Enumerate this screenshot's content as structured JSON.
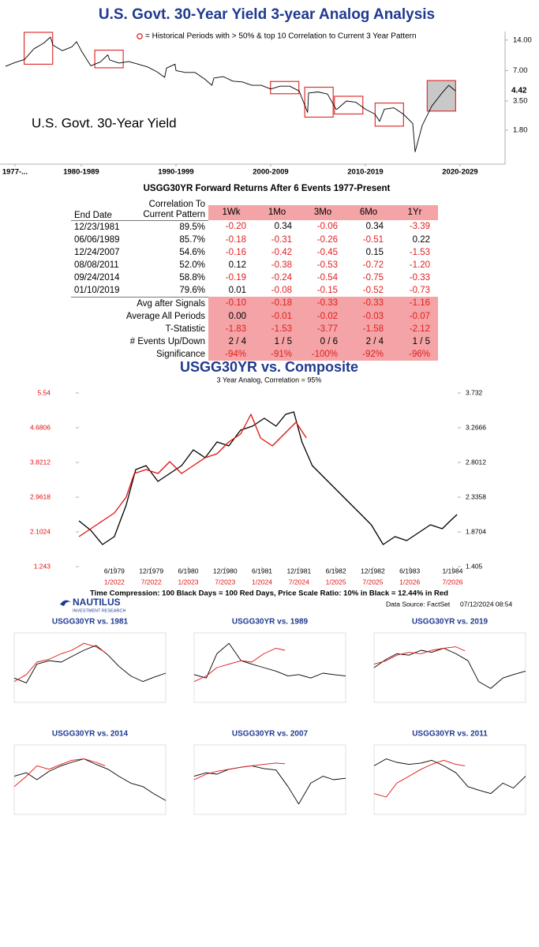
{
  "chart_data": [
    {
      "type": "line",
      "title": "U.S. Govt. 30-Year Yield 3-year Analog Analysis",
      "legend_text": "= Historical Periods with > 50% & top 10 Correlation to Current 3 Year Pattern",
      "annotation": "U.S. Govt. 30-Year Yield",
      "log_scale": true,
      "xlim": [
        1976.42,
        2029.75
      ],
      "xticks": [
        {
          "value": 1978,
          "label": "1977-..."
        },
        {
          "value": 1985,
          "label": "1980-1989"
        },
        {
          "value": 1995,
          "label": "1990-1999"
        },
        {
          "value": 2005,
          "label": "2000-2009"
        },
        {
          "value": 2015,
          "label": "2010-2019"
        },
        {
          "value": 2025,
          "label": "2020-2029"
        }
      ],
      "ylim": [
        1.05,
        17
      ],
      "yticks": [
        {
          "value": 1.8,
          "label": "1.80"
        },
        {
          "value": 3.5,
          "label": "3.50"
        },
        {
          "value": 7,
          "label": "7.00"
        },
        {
          "value": 14,
          "label": "14.00"
        }
      ],
      "x": [
        1977,
        1978,
        1979,
        1980,
        1981,
        1981.75,
        1982,
        1983,
        1984,
        1984.5,
        1985,
        1986,
        1987,
        1987.8,
        1988,
        1989,
        1990,
        1991,
        1992,
        1993,
        1993.8,
        1994,
        1994.9,
        1995,
        1996,
        1997,
        1998,
        1998.8,
        1999,
        2000,
        2001,
        2002,
        2003,
        2004,
        2005,
        2006,
        2007,
        2008,
        2008.9,
        2009,
        2010,
        2011,
        2011.9,
        2012,
        2013,
        2014,
        2015,
        2016,
        2016.5,
        2017,
        2018,
        2019,
        2020,
        2020.25,
        2021,
        2022,
        2023,
        2023.8,
        2024.5
      ],
      "series": [
        {
          "color": "#000000",
          "values": [
            7.7,
            8.4,
            9.0,
            11.5,
            13.0,
            15.0,
            12.5,
            11.0,
            12.0,
            13.5,
            11.0,
            7.8,
            8.5,
            10.0,
            8.9,
            8.3,
            8.6,
            8.1,
            7.6,
            6.8,
            6.0,
            7.4,
            8.1,
            7.0,
            6.7,
            6.7,
            5.8,
            5.0,
            5.9,
            6.1,
            5.5,
            5.4,
            5.0,
            5.0,
            4.6,
            4.9,
            4.9,
            4.4,
            2.7,
            4.2,
            4.3,
            4.1,
            2.9,
            2.9,
            3.5,
            3.4,
            2.9,
            2.6,
            2.2,
            2.9,
            3.0,
            2.6,
            2.1,
            1.1,
            2.0,
            3.1,
            4.1,
            5.0,
            4.42
          ],
          "value_labels": [
            null,
            null,
            null,
            null,
            null,
            null,
            null,
            null,
            null,
            null,
            null,
            null,
            null,
            null,
            null,
            null,
            null,
            null,
            null,
            null,
            null,
            null,
            null,
            null,
            null,
            null,
            null,
            null,
            null,
            null,
            null,
            null,
            null,
            null,
            null,
            null,
            null,
            null,
            null,
            null,
            null,
            null,
            null,
            null,
            null,
            null,
            null,
            null,
            null,
            null,
            null,
            null,
            null,
            null,
            null,
            null,
            null,
            null,
            "4.42"
          ]
        }
      ],
      "period_color": "#e03030",
      "periods": [
        {
          "start": 1978.97,
          "end": 1981.98
        },
        {
          "start": 1986.43,
          "end": 1989.43
        },
        {
          "start": 2004.98,
          "end": 2007.98
        },
        {
          "start": 2008.6,
          "end": 2011.6
        },
        {
          "start": 2011.73,
          "end": 2014.73
        },
        {
          "start": 2016.03,
          "end": 2019.03
        }
      ],
      "current_period": {
        "start": 2021.53,
        "end": 2024.53,
        "color": "#c8c8c8"
      }
    },
    {
      "type": "line",
      "title": "USGG30YR vs. Composite",
      "subtitle": "3 Year Analog, Correlation = 95%",
      "footnote": "Time Compression: 100 Black Days = 100 Red Days, Price Scale Ratio: 10% in Black = 12.44% in Red",
      "source": "Data Source: FactSet",
      "timestamp": "07/12/2024 08:54",
      "logo": "NAUTILUS",
      "logo_sub": "INVESTMENT RESEARCH",
      "xlim": [
        1978.94,
        1984.07
      ],
      "xticks": [
        {
          "value": 1979.42,
          "label": "6/1979"
        },
        {
          "value": 1979.92,
          "label": "12/1979"
        },
        {
          "value": 1980.42,
          "label": "6/1980"
        },
        {
          "value": 1980.92,
          "label": "12/1980"
        },
        {
          "value": 1981.42,
          "label": "6/1981"
        },
        {
          "value": 1981.92,
          "label": "12/1981"
        },
        {
          "value": 1982.42,
          "label": "6/1982"
        },
        {
          "value": 1982.92,
          "label": "12/1982"
        },
        {
          "value": 1983.42,
          "label": "6/1983"
        },
        {
          "value": 1984.0,
          "label": "1/1984"
        }
      ],
      "x2ticks": [
        {
          "value": 1979.42,
          "label": "1/2022"
        },
        {
          "value": 1979.92,
          "label": "7/2022"
        },
        {
          "value": 1980.42,
          "label": "1/2023"
        },
        {
          "value": 1980.92,
          "label": "7/2023"
        },
        {
          "value": 1981.42,
          "label": "1/2024"
        },
        {
          "value": 1981.92,
          "label": "7/2024"
        },
        {
          "value": 1982.42,
          "label": "1/2025"
        },
        {
          "value": 1982.92,
          "label": "7/2025"
        },
        {
          "value": 1983.42,
          "label": "1/2026"
        },
        {
          "value": 1984.0,
          "label": "7/2026"
        }
      ],
      "x2tick_color": "#e01010",
      "ylim": [
        1.243,
        5.54
      ],
      "yticks": [
        1.243,
        2.1024,
        2.9618,
        3.8212,
        4.6806,
        5.54
      ],
      "ytick_color": "#e01010",
      "y2lim": [
        1.405,
        3.732
      ],
      "y2ticks": [
        1.405,
        1.8704,
        2.3358,
        2.8012,
        3.2666,
        3.732
      ],
      "series": [
        {
          "color": "#000000",
          "axis": "y2",
          "x": [
            1978.94,
            1979.1,
            1979.26,
            1979.42,
            1979.58,
            1979.71,
            1979.85,
            1980.01,
            1980.17,
            1980.33,
            1980.49,
            1980.65,
            1980.81,
            1980.97,
            1981.13,
            1981.29,
            1981.45,
            1981.61,
            1981.74,
            1981.85,
            1981.96,
            1982.1,
            1982.26,
            1982.42,
            1982.58,
            1982.74,
            1982.9,
            1983.06,
            1983.22,
            1983.38,
            1983.54,
            1983.7,
            1983.86,
            1983.97,
            1984.06
          ],
          "values": [
            2.019,
            1.892,
            1.701,
            1.807,
            2.23,
            2.706,
            2.759,
            2.547,
            2.653,
            2.759,
            2.97,
            2.865,
            3.076,
            3.023,
            3.235,
            3.288,
            3.393,
            3.288,
            3.446,
            3.478,
            3.076,
            2.759,
            2.6,
            2.442,
            2.283,
            2.124,
            1.966,
            1.701,
            1.807,
            1.754,
            1.86,
            1.966,
            1.913,
            2.019,
            2.103
          ]
        },
        {
          "color": "#e01010",
          "x": [
            1978.94,
            1979.1,
            1979.26,
            1979.42,
            1979.58,
            1979.69,
            1979.85,
            1980.01,
            1980.17,
            1980.33,
            1980.49,
            1980.65,
            1980.81,
            1980.97,
            1981.13,
            1981.27,
            1981.4,
            1981.56,
            1981.72,
            1981.88,
            1982.02
          ],
          "values": [
            1.985,
            2.181,
            2.376,
            2.571,
            2.962,
            3.548,
            3.645,
            3.548,
            3.841,
            3.548,
            3.743,
            3.938,
            4.036,
            4.329,
            4.524,
            5.013,
            4.427,
            4.231,
            4.524,
            4.817,
            4.427
          ]
        }
      ]
    },
    {
      "type": "line",
      "title": "USGG30YR vs. 1981",
      "xlim": [
        0,
        1
      ],
      "ylim": [
        0,
        100
      ],
      "series": [
        {
          "color": "#000000",
          "x": [
            0,
            0.08,
            0.15,
            0.23,
            0.31,
            0.38,
            0.46,
            0.54,
            0.62,
            0.69,
            0.77,
            0.85,
            0.92,
            1
          ],
          "values": [
            35,
            28,
            55,
            60,
            58,
            66,
            75,
            82,
            68,
            52,
            38,
            30,
            36,
            42
          ]
        },
        {
          "color": "#e01010",
          "x": [
            0,
            0.08,
            0.15,
            0.23,
            0.31,
            0.38,
            0.46,
            0.54,
            0.6
          ],
          "values": [
            30,
            40,
            58,
            62,
            70,
            75,
            85,
            80,
            72
          ]
        }
      ]
    },
    {
      "type": "line",
      "title": "USGG30YR vs. 1989",
      "xlim": [
        0,
        1
      ],
      "ylim": [
        0,
        100
      ],
      "series": [
        {
          "color": "#000000",
          "x": [
            0,
            0.08,
            0.15,
            0.23,
            0.31,
            0.38,
            0.46,
            0.54,
            0.62,
            0.69,
            0.77,
            0.85,
            0.92,
            1
          ],
          "values": [
            40,
            35,
            70,
            85,
            60,
            55,
            50,
            45,
            38,
            40,
            35,
            42,
            40,
            38
          ]
        },
        {
          "color": "#e01010",
          "x": [
            0,
            0.08,
            0.15,
            0.23,
            0.31,
            0.38,
            0.46,
            0.54,
            0.6
          ],
          "values": [
            30,
            38,
            50,
            55,
            60,
            58,
            70,
            78,
            75
          ]
        }
      ]
    },
    {
      "type": "line",
      "title": "USGG30YR vs. 2019",
      "xlim": [
        0,
        1
      ],
      "ylim": [
        0,
        100
      ],
      "series": [
        {
          "color": "#000000",
          "x": [
            0,
            0.08,
            0.15,
            0.23,
            0.31,
            0.38,
            0.46,
            0.54,
            0.62,
            0.69,
            0.77,
            0.85,
            0.92,
            1
          ],
          "values": [
            50,
            62,
            70,
            68,
            75,
            72,
            78,
            70,
            60,
            30,
            20,
            35,
            40,
            45
          ]
        },
        {
          "color": "#e01010",
          "x": [
            0,
            0.08,
            0.15,
            0.23,
            0.31,
            0.38,
            0.46,
            0.54,
            0.6
          ],
          "values": [
            55,
            60,
            68,
            72,
            70,
            75,
            78,
            80,
            74
          ]
        }
      ]
    },
    {
      "type": "line",
      "title": "USGG30YR vs. 2014",
      "xlim": [
        0,
        1
      ],
      "ylim": [
        0,
        100
      ],
      "series": [
        {
          "color": "#000000",
          "x": [
            0,
            0.08,
            0.15,
            0.23,
            0.31,
            0.38,
            0.46,
            0.54,
            0.62,
            0.69,
            0.77,
            0.85,
            0.92,
            1
          ],
          "values": [
            55,
            60,
            50,
            62,
            70,
            75,
            80,
            72,
            65,
            55,
            45,
            40,
            30,
            20
          ]
        },
        {
          "color": "#e01010",
          "x": [
            0,
            0.08,
            0.15,
            0.23,
            0.31,
            0.38,
            0.46,
            0.54,
            0.6
          ],
          "values": [
            40,
            55,
            70,
            65,
            72,
            78,
            80,
            75,
            70
          ]
        }
      ]
    },
    {
      "type": "line",
      "title": "USGG30YR vs. 2007",
      "xlim": [
        0,
        1
      ],
      "ylim": [
        0,
        100
      ],
      "series": [
        {
          "color": "#000000",
          "x": [
            0,
            0.08,
            0.15,
            0.23,
            0.31,
            0.38,
            0.46,
            0.54,
            0.62,
            0.69,
            0.77,
            0.85,
            0.92,
            1
          ],
          "values": [
            55,
            60,
            58,
            65,
            68,
            70,
            66,
            64,
            40,
            15,
            45,
            55,
            50,
            52
          ]
        },
        {
          "color": "#e01010",
          "x": [
            0,
            0.08,
            0.15,
            0.23,
            0.31,
            0.38,
            0.46,
            0.54,
            0.6
          ],
          "values": [
            50,
            58,
            62,
            65,
            68,
            70,
            72,
            74,
            73
          ]
        }
      ]
    },
    {
      "type": "line",
      "title": "USGG30YR vs. 2011",
      "xlim": [
        0,
        1
      ],
      "ylim": [
        0,
        100
      ],
      "series": [
        {
          "color": "#000000",
          "x": [
            0,
            0.08,
            0.15,
            0.23,
            0.31,
            0.38,
            0.46,
            0.54,
            0.62,
            0.69,
            0.77,
            0.85,
            0.92,
            1
          ],
          "values": [
            70,
            80,
            75,
            72,
            74,
            78,
            70,
            60,
            40,
            35,
            30,
            45,
            38,
            55
          ]
        },
        {
          "color": "#e01010",
          "x": [
            0,
            0.08,
            0.15,
            0.23,
            0.31,
            0.38,
            0.46,
            0.54,
            0.6
          ],
          "values": [
            30,
            25,
            45,
            55,
            65,
            72,
            78,
            72,
            70
          ]
        }
      ]
    }
  ],
  "table": {
    "title": "USGG30YR Forward Returns After 6 Events 1977-Present",
    "negative_color": "#e02020",
    "highlight_color": "#f4a3a6",
    "columns": [
      "End Date",
      "Correlation To Current Pattern",
      "1Wk",
      "1Mo",
      "3Mo",
      "6Mo",
      "1Yr"
    ],
    "rows": [
      [
        "12/23/1981",
        "89.5%",
        "-0.20",
        "0.34",
        "-0.06",
        "0.34",
        "-3.39"
      ],
      [
        "06/06/1989",
        "85.7%",
        "-0.18",
        "-0.31",
        "-0.26",
        "-0.51",
        "0.22"
      ],
      [
        "12/24/2007",
        "54.6%",
        "-0.16",
        "-0.42",
        "-0.45",
        "0.15",
        "-1.53"
      ],
      [
        "08/08/2011",
        "52.0%",
        "0.12",
        "-0.38",
        "-0.53",
        "-0.72",
        "-1.20"
      ],
      [
        "09/24/2014",
        "58.8%",
        "-0.19",
        "-0.24",
        "-0.54",
        "-0.75",
        "-0.33"
      ],
      [
        "01/10/2019",
        "79.6%",
        "0.01",
        "-0.08",
        "-0.15",
        "-0.52",
        "-0.73"
      ]
    ],
    "summary": [
      [
        "Avg after Signals",
        "-0.10",
        "-0.18",
        "-0.33",
        "-0.33",
        "-1.16"
      ],
      [
        "Average All Periods",
        "0.00",
        "-0.01",
        "-0.02",
        "-0.03",
        "-0.07"
      ],
      [
        "T-Statistic",
        "-1.83",
        "-1.53",
        "-3.77",
        "-1.58",
        "-2.12"
      ],
      [
        "# Events Up/Down",
        "2 / 4",
        "1 / 5",
        "0 / 6",
        "2 / 4",
        "1 / 5"
      ],
      [
        "Significance",
        "-94%",
        "-91%",
        "-100%",
        "-92%",
        "-96%"
      ]
    ]
  }
}
